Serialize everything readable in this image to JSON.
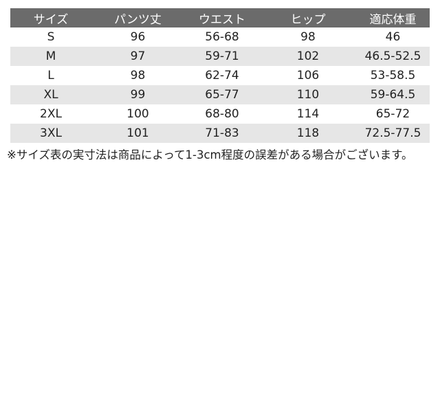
{
  "headers": [
    "サイズ",
    "パンツ丈",
    "ウエスト",
    "ヒップ",
    "適応体重"
  ],
  "rows": [
    [
      "S",
      "96",
      "56-68",
      "98",
      "46"
    ],
    [
      "M",
      "97",
      "59-71",
      "102",
      "46.5-52.5"
    ],
    [
      "L",
      "98",
      "62-74",
      "106",
      "53-58.5"
    ],
    [
      "XL",
      "99",
      "65-77",
      "110",
      "59-64.5"
    ],
    [
      "2XL",
      "100",
      "68-80",
      "114",
      "65-72"
    ],
    [
      "3XL",
      "101",
      "71-83",
      "118",
      "72.5-77.5"
    ]
  ],
  "note": "※サイズ表の実寸法は商品によって1-3cm程度の誤差がある場合がございます。",
  "colors": {
    "header_bg": "#6b6b6b",
    "alt_row_bg": "#e6e6e6"
  }
}
